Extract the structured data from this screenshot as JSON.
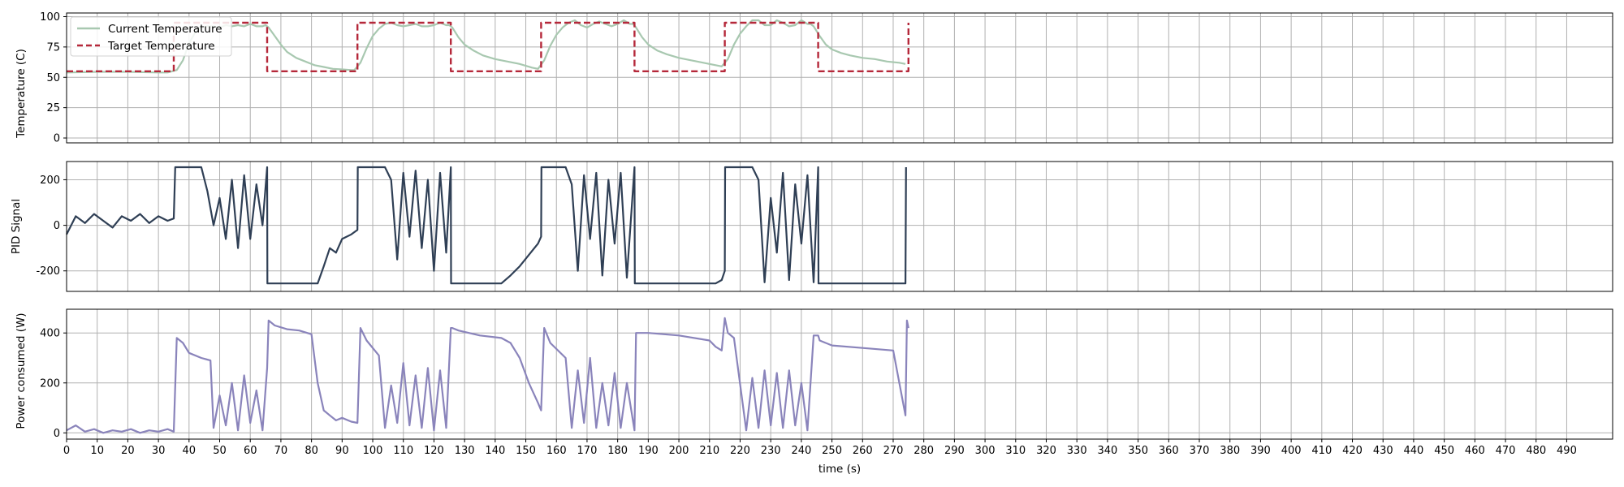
{
  "chart_data": [
    {
      "type": "line",
      "panel": "temperature",
      "title": "",
      "xlabel": "",
      "ylabel": "Temperature (C)",
      "xlim": [
        0,
        505
      ],
      "ylim": [
        -4,
        103
      ],
      "yticks": [
        0,
        25,
        50,
        75,
        100
      ],
      "grid": true,
      "legend_position": "upper-left",
      "series": [
        {
          "name": "Current Temperature",
          "color": "#a8c8b0",
          "style": "solid",
          "x": [
            0,
            10,
            20,
            30,
            33,
            36,
            38,
            40,
            42,
            44,
            46,
            48,
            50,
            52,
            54,
            56,
            58,
            60,
            62,
            64,
            65,
            66,
            68,
            70,
            72,
            75,
            78,
            81,
            84,
            87,
            90,
            93,
            94,
            96,
            98,
            100,
            102,
            104,
            106,
            108,
            110,
            112,
            114,
            116,
            118,
            120,
            122,
            124,
            125,
            126,
            128,
            130,
            133,
            136,
            140,
            144,
            148,
            152,
            154,
            156,
            158,
            160,
            162,
            164,
            166,
            168,
            170,
            172,
            174,
            176,
            178,
            180,
            182,
            184,
            185,
            186,
            188,
            190,
            193,
            196,
            200,
            204,
            208,
            212,
            214,
            216,
            218,
            220,
            222,
            224,
            226,
            228,
            230,
            232,
            234,
            236,
            238,
            240,
            242,
            243,
            244,
            246,
            248,
            250,
            253,
            256,
            260,
            264,
            268,
            272,
            274
          ],
          "y": [
            54,
            54.5,
            54.5,
            54,
            54,
            56,
            64,
            78,
            87,
            91,
            92,
            92,
            91,
            93,
            92,
            93,
            92,
            94,
            92,
            92,
            93,
            91,
            84,
            77,
            71,
            66,
            63,
            60,
            58.5,
            57,
            56.5,
            56,
            56,
            62,
            74,
            84,
            90,
            94,
            95,
            93,
            92,
            93,
            94,
            92,
            92,
            93,
            95,
            93,
            93,
            91,
            83,
            77,
            72,
            68,
            65,
            63,
            61,
            58,
            57,
            64,
            76,
            85,
            91,
            95,
            97,
            93,
            91,
            94,
            96,
            94,
            92,
            94,
            97,
            94,
            94,
            91,
            83,
            77,
            72,
            69,
            66,
            64,
            62,
            60,
            59,
            65,
            77,
            86,
            92,
            97,
            97,
            93,
            93,
            97,
            95,
            92,
            93,
            97,
            94,
            94,
            92,
            84,
            77,
            73,
            70,
            68,
            66,
            65,
            63,
            62,
            61
          ]
        },
        {
          "name": "Target Temperature",
          "color": "#b5283a",
          "style": "dashed",
          "x": [
            0,
            35,
            35,
            65.5,
            65.5,
            95,
            95,
            125.5,
            125.5,
            155,
            155,
            185.5,
            185.5,
            215,
            215,
            245.5,
            245.5,
            275,
            275
          ],
          "y": [
            55,
            55,
            95,
            95,
            55,
            55,
            95,
            95,
            55,
            55,
            95,
            95,
            55,
            55,
            95,
            95,
            55,
            55,
            95
          ]
        }
      ]
    },
    {
      "type": "line",
      "panel": "pid",
      "title": "",
      "xlabel": "",
      "ylabel": "PID Signal",
      "xlim": [
        0,
        505
      ],
      "ylim": [
        -290,
        280
      ],
      "yticks": [
        -200,
        0,
        200
      ],
      "grid": true,
      "series": [
        {
          "name": "",
          "color": "#2f3f55",
          "style": "solid",
          "x": [
            0,
            3,
            6,
            9,
            12,
            15,
            18,
            21,
            24,
            27,
            30,
            33,
            35,
            35.5,
            44,
            46,
            48,
            50,
            52,
            54,
            56,
            58,
            60,
            62,
            64,
            65.5,
            65.6,
            82,
            84,
            86,
            88,
            90,
            93,
            95,
            95.1,
            104,
            106,
            108,
            110,
            112,
            114,
            116,
            118,
            120,
            122,
            124,
            125.5,
            125.6,
            142,
            145,
            148,
            151,
            154,
            155,
            155.1,
            163,
            165,
            167,
            169,
            171,
            173,
            175,
            177,
            179,
            181,
            183,
            185.5,
            185.6,
            212,
            214,
            215,
            215.1,
            224,
            226,
            228,
            230,
            232,
            234,
            236,
            238,
            240,
            242,
            244,
            245.5,
            245.6,
            274,
            274.2
          ],
          "y": [
            -40,
            40,
            10,
            50,
            20,
            -10,
            40,
            20,
            50,
            10,
            40,
            20,
            30,
            255,
            255,
            150,
            0,
            120,
            -60,
            200,
            -100,
            220,
            -60,
            180,
            0,
            255,
            -255,
            -255,
            -180,
            -100,
            -120,
            -60,
            -40,
            -20,
            255,
            255,
            200,
            -150,
            230,
            -50,
            240,
            -100,
            200,
            -200,
            230,
            -120,
            255,
            -255,
            -255,
            -220,
            -180,
            -130,
            -80,
            -50,
            255,
            255,
            180,
            -200,
            220,
            -60,
            230,
            -220,
            200,
            -80,
            230,
            -230,
            255,
            -255,
            -255,
            -240,
            -200,
            255,
            255,
            200,
            -250,
            120,
            -120,
            230,
            -240,
            180,
            -80,
            220,
            -250,
            255,
            -255,
            -255,
            255
          ]
        }
      ]
    },
    {
      "type": "line",
      "panel": "power",
      "title": "",
      "xlabel": "time (s)",
      "ylabel": "Power consumed (W)",
      "xlim": [
        0,
        505
      ],
      "ylim": [
        -25,
        495
      ],
      "yticks": [
        0,
        200,
        400
      ],
      "xticks": [
        0,
        10,
        20,
        30,
        40,
        50,
        60,
        70,
        80,
        90,
        100,
        110,
        120,
        130,
        140,
        150,
        160,
        170,
        180,
        190,
        200,
        210,
        220,
        230,
        240,
        250,
        260,
        270,
        280,
        290,
        300,
        310,
        320,
        330,
        340,
        350,
        360,
        370,
        380,
        390,
        400,
        410,
        420,
        430,
        440,
        450,
        460,
        470,
        480,
        490
      ],
      "grid": true,
      "series": [
        {
          "name": "",
          "color": "#8a84bb",
          "style": "solid",
          "x": [
            0,
            3,
            6,
            9,
            12,
            15,
            18,
            21,
            24,
            27,
            30,
            33,
            35,
            36,
            38,
            40,
            44,
            47,
            48,
            50,
            52,
            54,
            56,
            58,
            60,
            62,
            64,
            65.5,
            66,
            68,
            72,
            76,
            80,
            82,
            84,
            86,
            88,
            90,
            93,
            95,
            96,
            98,
            102,
            104,
            106,
            108,
            110,
            112,
            114,
            116,
            118,
            120,
            122,
            124,
            125.5,
            126,
            128,
            135,
            142,
            145,
            148,
            151,
            154,
            155,
            156,
            158,
            163,
            165,
            167,
            169,
            171,
            173,
            175,
            177,
            179,
            181,
            183,
            185.5,
            186,
            190,
            200,
            210,
            212,
            214,
            215,
            216,
            218,
            222,
            224,
            226,
            228,
            230,
            232,
            234,
            236,
            238,
            240,
            242,
            244,
            245.5,
            246,
            250,
            260,
            270,
            274,
            274.5,
            275
          ],
          "y": [
            10,
            30,
            5,
            15,
            0,
            10,
            5,
            15,
            0,
            10,
            5,
            15,
            5,
            380,
            360,
            320,
            300,
            290,
            20,
            150,
            30,
            200,
            10,
            230,
            40,
            170,
            10,
            260,
            450,
            430,
            415,
            410,
            395,
            200,
            90,
            70,
            50,
            60,
            45,
            40,
            420,
            370,
            310,
            20,
            190,
            40,
            280,
            30,
            230,
            20,
            260,
            10,
            250,
            20,
            420,
            420,
            410,
            390,
            380,
            360,
            300,
            200,
            120,
            90,
            420,
            360,
            300,
            20,
            250,
            40,
            300,
            20,
            200,
            30,
            240,
            20,
            200,
            10,
            400,
            400,
            390,
            370,
            345,
            330,
            460,
            400,
            380,
            10,
            220,
            20,
            250,
            30,
            240,
            20,
            250,
            30,
            200,
            10,
            390,
            390,
            370,
            350,
            340,
            330,
            70,
            450,
            420
          ]
        }
      ]
    }
  ]
}
